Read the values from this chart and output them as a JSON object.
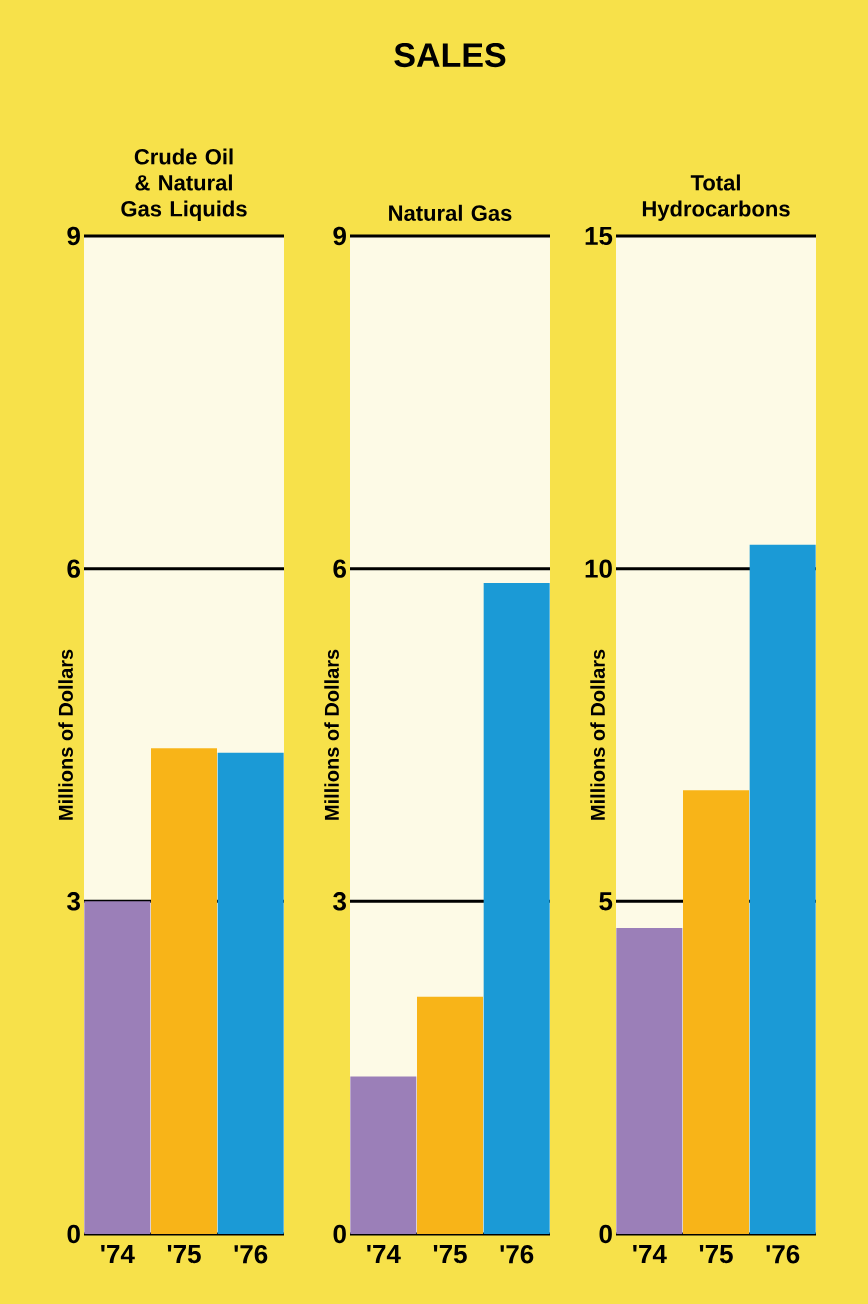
{
  "chart_data": [
    {
      "type": "bar",
      "subtitle": "Crude Oil & Natural Gas Liquids",
      "ylabel": "Millions of Dollars",
      "categories": [
        "'74",
        "'75",
        "'76"
      ],
      "values": [
        3.0,
        4.38,
        4.34
      ],
      "colors": [
        "#9b7fb8",
        "#f8b418",
        "#1b9ad6"
      ],
      "ylim": [
        0,
        9
      ],
      "yticks": [
        0,
        3,
        6,
        9
      ],
      "grid": "y"
    },
    {
      "type": "bar",
      "title": "SALES",
      "subtitle": "Natural Gas",
      "ylabel": "Millions of Dollars",
      "categories": [
        "'74",
        "'75",
        "'76"
      ],
      "values": [
        1.42,
        2.14,
        5.87
      ],
      "colors": [
        "#9b7fb8",
        "#f8b418",
        "#1b9ad6"
      ],
      "ylim": [
        0,
        9
      ],
      "yticks": [
        0,
        3,
        6,
        9
      ],
      "grid": "y"
    },
    {
      "type": "bar",
      "subtitle": "Total Hydrocarbons",
      "ylabel": "Millions of Dollars",
      "categories": [
        "'74",
        "'75",
        "'76"
      ],
      "values": [
        4.6,
        6.67,
        10.36
      ],
      "colors": [
        "#9b7fb8",
        "#f8b418",
        "#1b9ad6"
      ],
      "ylim": [
        0,
        15
      ],
      "yticks": [
        0,
        5,
        10,
        15
      ],
      "grid": "y"
    }
  ]
}
